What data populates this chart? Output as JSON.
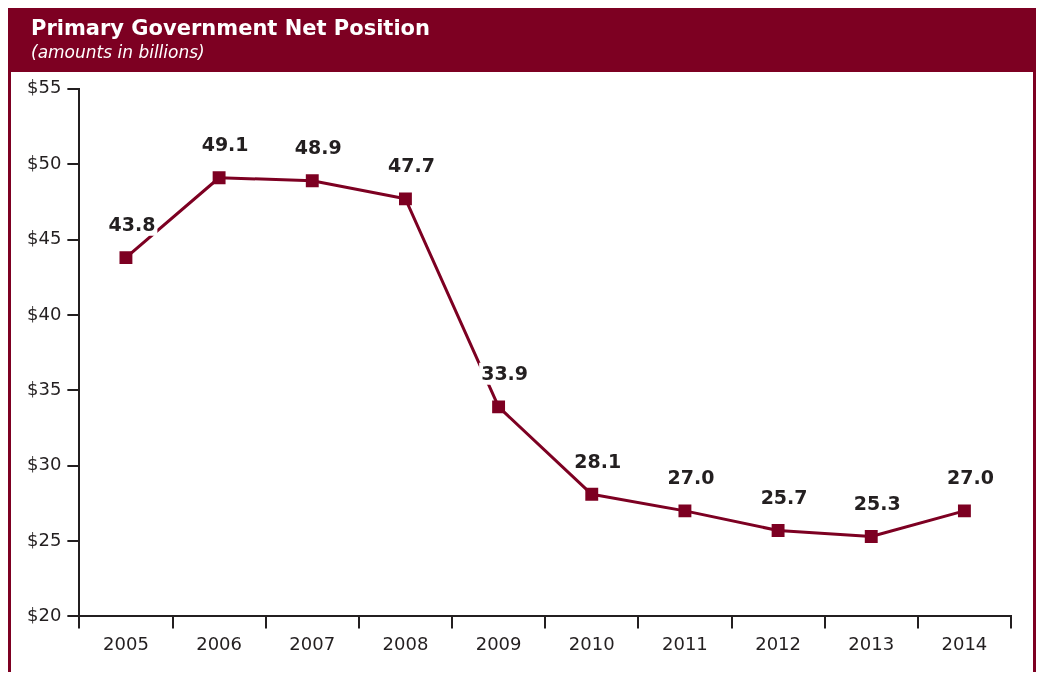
{
  "chart_data": {
    "type": "line",
    "title": "Primary Government Net Position",
    "subtitle": "(amounts in billions)",
    "categories": [
      "2005",
      "2006",
      "2007",
      "2008",
      "2009",
      "2010",
      "2011",
      "2012",
      "2013",
      "2014"
    ],
    "series": [
      {
        "color": "#7d0022",
        "values": [
          43.8,
          49.1,
          48.9,
          47.7,
          33.9,
          28.1,
          27.0,
          25.7,
          25.3,
          27.0
        ],
        "value_labels": [
          "43.8",
          "49.1",
          "48.9",
          "47.7",
          "33.9",
          "28.1",
          "27.0",
          "25.7",
          "25.3",
          "27.0"
        ]
      }
    ],
    "ylim": [
      20,
      55
    ],
    "yticks": [
      {
        "value": 20,
        "label": "$20"
      },
      {
        "value": 25,
        "label": "$25"
      },
      {
        "value": 30,
        "label": "$30"
      },
      {
        "value": 35,
        "label": "$35"
      },
      {
        "value": 40,
        "label": "$40"
      },
      {
        "value": 45,
        "label": "$45"
      },
      {
        "value": 50,
        "label": "$50"
      },
      {
        "value": 55,
        "label": "$55"
      }
    ],
    "marker": "square",
    "line_style": "solid",
    "grid": false,
    "legend": false
  }
}
